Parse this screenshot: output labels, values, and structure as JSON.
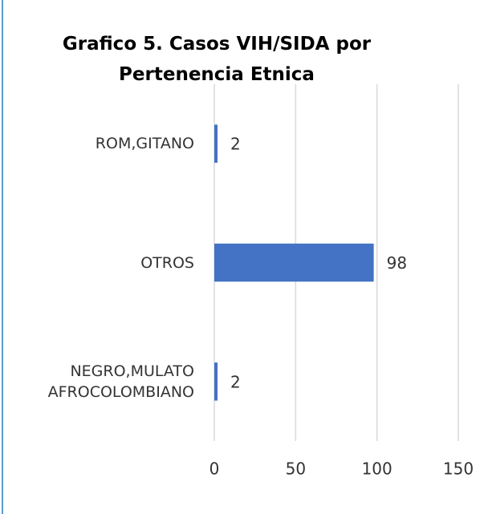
{
  "chart_data": {
    "type": "bar",
    "orientation": "horizontal",
    "title": "Grafico 5. Casos VIH/SIDA por Pertenencia Etnica",
    "categories": [
      "ROM,GITANO",
      "OTROS",
      "NEGRO,MULATO AFROCOLOMBIANO"
    ],
    "values": [
      2,
      98,
      2
    ],
    "color": "#4472c4",
    "xlim": [
      0,
      150
    ],
    "xticks": [
      0,
      50,
      100,
      150
    ],
    "grid": true
  }
}
